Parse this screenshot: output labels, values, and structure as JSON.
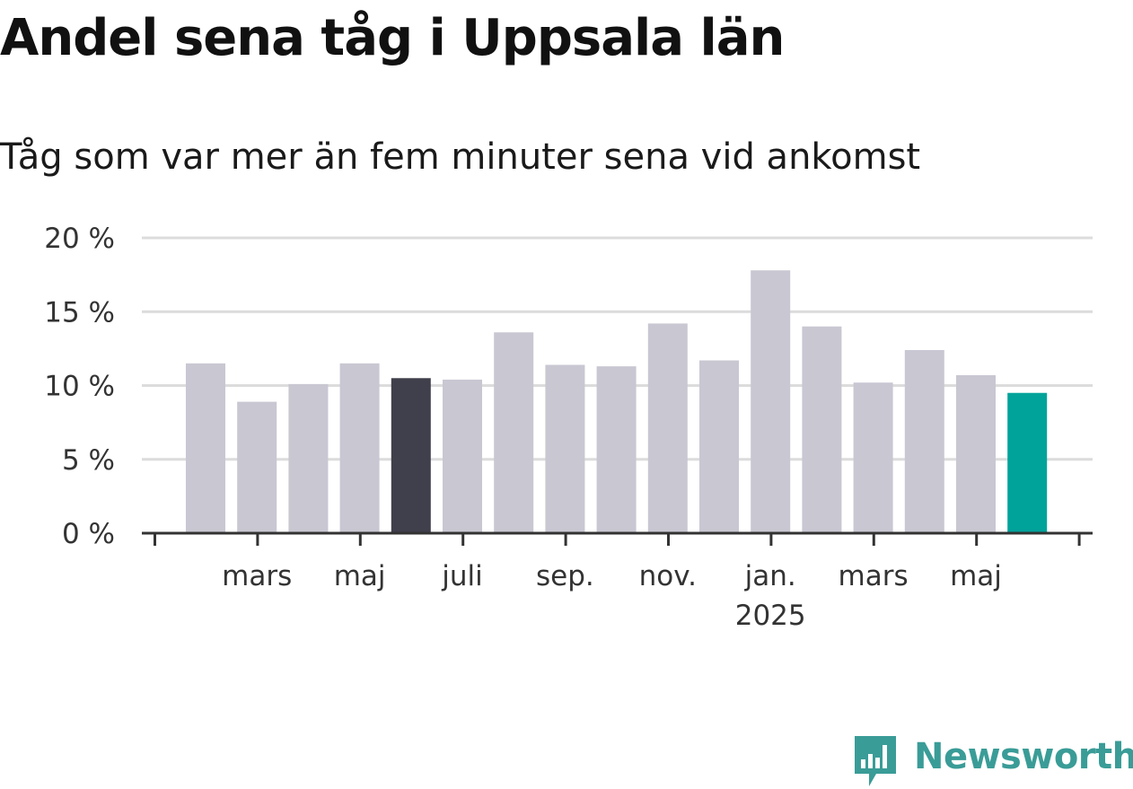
{
  "title": "Andel sena tåg i Uppsala län",
  "subtitle": "Tåg som var mer än fem minuter sena vid ankomst",
  "brand": "Newsworthy",
  "colors": {
    "bar_default": "#c8c7d2",
    "bar_highlight_prev_year": "#403f4c",
    "bar_latest": "#00a39a",
    "brand": "#3a9c97",
    "grid": "#dcdcdc",
    "axis": "#333333"
  },
  "chart_data": {
    "type": "bar",
    "title": "Andel sena tåg i Uppsala län",
    "subtitle": "Tåg som var mer än fem minuter sena vid ankomst",
    "xlabel": "",
    "ylabel": "",
    "ylim": [
      0,
      20
    ],
    "yticks": [
      "0 %",
      "5 %",
      "10 %",
      "15 %",
      "20 %"
    ],
    "grid": true,
    "xtick_labels": [
      {
        "index": 1,
        "label": "mars"
      },
      {
        "index": 3,
        "label": "maj"
      },
      {
        "index": 5,
        "label": "juli"
      },
      {
        "index": 7,
        "label": "sep."
      },
      {
        "index": 9,
        "label": "nov."
      },
      {
        "index": 11,
        "label": "jan.",
        "sublabel": "2025"
      },
      {
        "index": 13,
        "label": "mars"
      },
      {
        "index": 15,
        "label": "maj"
      }
    ],
    "values": [
      11.5,
      8.9,
      10.1,
      11.5,
      10.5,
      10.4,
      13.6,
      11.4,
      11.3,
      14.2,
      11.7,
      17.8,
      14.0,
      10.2,
      12.4,
      10.7,
      9.5
    ],
    "highlights": {
      "4": "bar_highlight_prev_year",
      "16": "bar_latest"
    }
  }
}
